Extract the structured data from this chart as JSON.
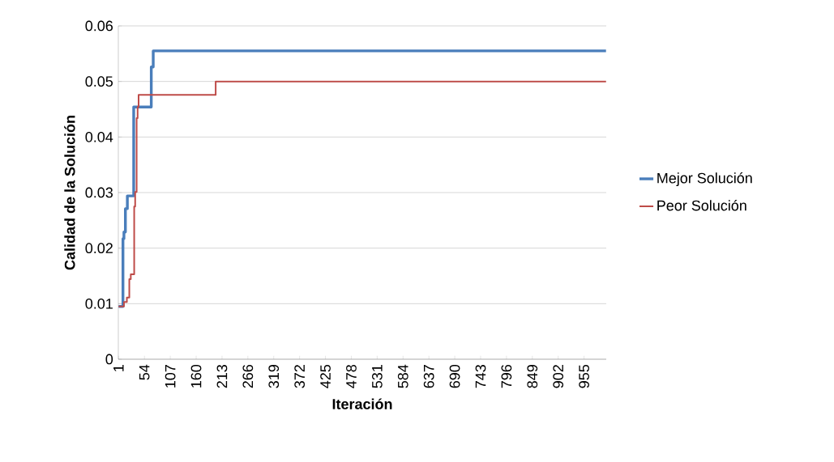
{
  "chart_data": {
    "type": "step",
    "xlabel": "Iteración",
    "ylabel": "Calidad de la Solución",
    "xlim": [
      0.5,
      1000.5
    ],
    "xticks": [
      1,
      54,
      107,
      160,
      213,
      266,
      319,
      372,
      425,
      478,
      531,
      584,
      637,
      690,
      743,
      796,
      849,
      902,
      955
    ],
    "ylim": [
      0,
      0.06
    ],
    "yticks": [
      0,
      0.01,
      0.02,
      0.03,
      0.04,
      0.05,
      0.06
    ],
    "grid": "y",
    "legend": "right",
    "marker": "none",
    "line_style": "solid",
    "series": [
      {
        "name": "Mejor Solución",
        "color": "#4a7ebb",
        "x": [
          1,
          10,
          12,
          15,
          19,
          32,
          68,
          72,
          1000
        ],
        "values": [
          0.0095,
          0.0217,
          0.0229,
          0.0271,
          0.0294,
          0.0454,
          0.0526,
          0.0555,
          0.0555
        ]
      },
      {
        "name": "Peor Solución",
        "color": "#be4b48",
        "x": [
          1,
          12,
          18,
          23,
          26,
          33,
          35,
          38,
          40,
          42,
          200,
          1000
        ],
        "values": [
          0.0095,
          0.0103,
          0.0111,
          0.0144,
          0.0153,
          0.0275,
          0.0301,
          0.0434,
          0.0454,
          0.0476,
          0.05,
          0.05
        ]
      }
    ]
  }
}
